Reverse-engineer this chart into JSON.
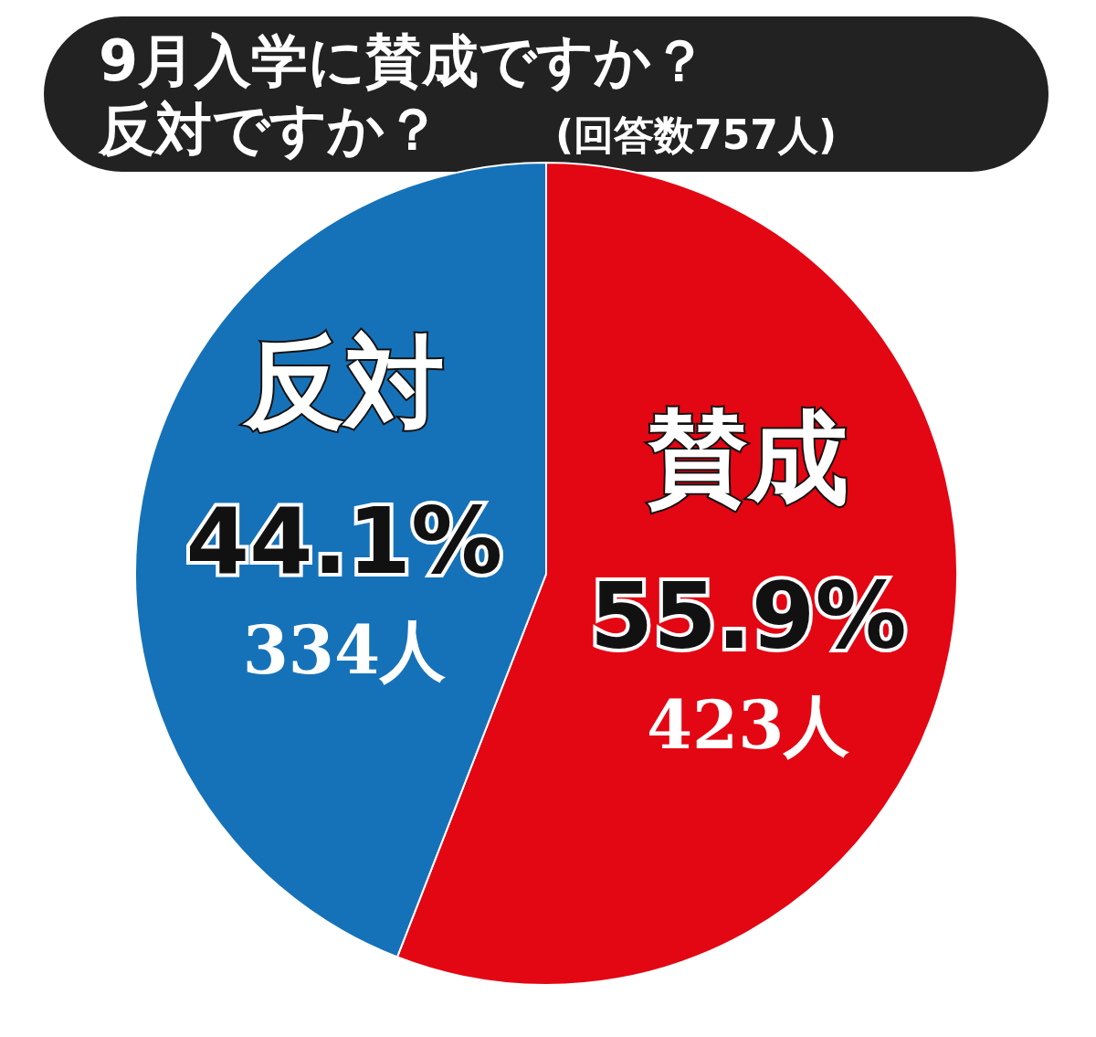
{
  "chart_data": {
    "type": "pie",
    "title": "9月入学に賛成ですか？反対ですか？",
    "subtitle": "(回答数757人)",
    "categories": [
      "賛成",
      "反対"
    ],
    "values": [
      55.9,
      44.1
    ],
    "colors": [
      "#e30613",
      "#1672b8"
    ],
    "value_labels": [
      "55.9%",
      "44.1%"
    ],
    "annotations": [
      "423人",
      "334人"
    ]
  }
}
